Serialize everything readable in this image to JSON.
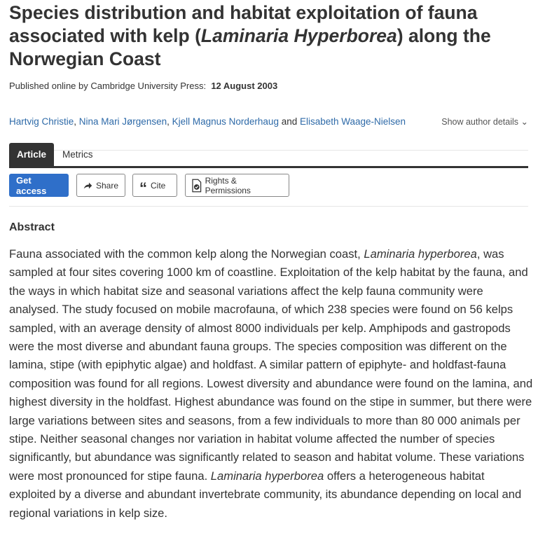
{
  "title": {
    "part1": "Species distribution and habitat exploitation of fauna associated with kelp (",
    "italic": "Laminaria Hyperborea",
    "part2": ") along the Norwegian Coast"
  },
  "published": {
    "label": "Published online by Cambridge University Press:",
    "date": "12 August 2003"
  },
  "authors": [
    {
      "name": "Hartvig Christie",
      "sep": ", "
    },
    {
      "name": "Nina Mari Jørgensen",
      "sep": ", "
    },
    {
      "name": "Kjell Magnus Norderhaug",
      "sep": " and "
    },
    {
      "name": "Elisabeth Waage-Nielsen",
      "sep": ""
    }
  ],
  "show_author_details": "Show author details",
  "tabs": [
    {
      "label": "Article",
      "active": true
    },
    {
      "label": "Metrics",
      "active": false
    }
  ],
  "actions": {
    "get_access": "Get access",
    "share": "Share",
    "cite": "Cite",
    "rights": "Rights & Permissions"
  },
  "colors": {
    "link": "#2e6aa8",
    "primary": "#2f6fc9",
    "tab_active": "#333333"
  },
  "abstract": {
    "heading": "Abstract",
    "s1": "Fauna associated with the common kelp along the Norwegian coast, ",
    "i1": "Laminaria hyperborea",
    "s2": ", was sampled at four sites covering 1000 km of coastline. Exploitation of the kelp habitat by the fauna, and the ways in which habitat size and seasonal variations affect the kelp fauna community were analysed. The study focused on mobile macrofauna, of which 238 species were found on 56 kelps sampled, with an average density of almost 8000 individuals per kelp. Amphipods and gastropods were the most diverse and abundant fauna groups. The species composition was different on the lamina, stipe (with epiphytic algae) and holdfast. A similar pattern of epiphyte- and holdfast-fauna composition was found for all regions. Lowest diversity and abundance were found on the lamina, and highest diversity in the holdfast. Highest abundance was found on the stipe in summer, but there were large variations between sites and seasons, from a few individuals to more than 80 000 animals per stipe. Neither seasonal changes nor variation in habitat volume affected the number of species significantly, but abundance was significantly related to season and habitat volume. These variations were most pronounced for stipe fauna. ",
    "i2": "Laminaria hyperborea",
    "s3": " offers a heterogeneous habitat exploited by a diverse and abundant invertebrate community, its abundance depending on local and regional variations in kelp size."
  }
}
